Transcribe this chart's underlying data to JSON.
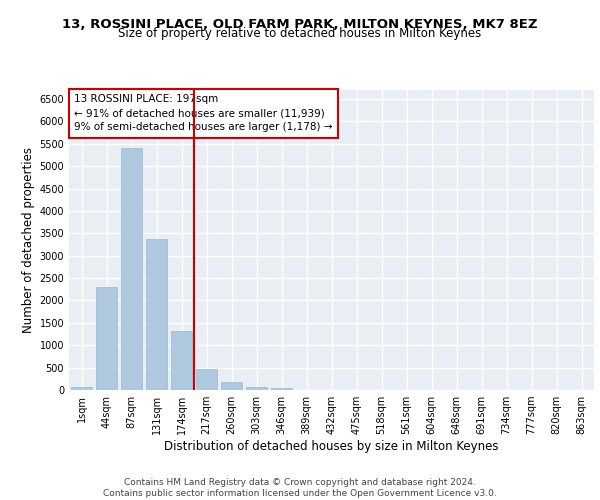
{
  "title_line1": "13, ROSSINI PLACE, OLD FARM PARK, MILTON KEYNES, MK7 8EZ",
  "title_line2": "Size of property relative to detached houses in Milton Keynes",
  "xlabel": "Distribution of detached houses by size in Milton Keynes",
  "ylabel": "Number of detached properties",
  "categories": [
    "1sqm",
    "44sqm",
    "87sqm",
    "131sqm",
    "174sqm",
    "217sqm",
    "260sqm",
    "303sqm",
    "346sqm",
    "389sqm",
    "432sqm",
    "475sqm",
    "518sqm",
    "561sqm",
    "604sqm",
    "648sqm",
    "691sqm",
    "734sqm",
    "777sqm",
    "820sqm",
    "863sqm"
  ],
  "values": [
    75,
    2300,
    5400,
    3380,
    1320,
    480,
    185,
    75,
    55,
    0,
    0,
    0,
    0,
    0,
    0,
    0,
    0,
    0,
    0,
    0,
    0
  ],
  "bar_color": "#aec8e0",
  "bar_edge_color": "#9ab8d0",
  "vline_x": 4.5,
  "vline_color": "#cc0000",
  "annotation_text": "13 ROSSINI PLACE: 197sqm\n← 91% of detached houses are smaller (11,939)\n9% of semi-detached houses are larger (1,178) →",
  "annotation_box_color": "white",
  "annotation_box_edge": "#cc0000",
  "ylim": [
    0,
    6700
  ],
  "yticks": [
    0,
    500,
    1000,
    1500,
    2000,
    2500,
    3000,
    3500,
    4000,
    4500,
    5000,
    5500,
    6000,
    6500
  ],
  "footer_text": "Contains HM Land Registry data © Crown copyright and database right 2024.\nContains public sector information licensed under the Open Government Licence v3.0.",
  "bg_color": "#e8eef4",
  "grid_color": "white",
  "title_fontsize": 9.5,
  "subtitle_fontsize": 8.5,
  "axis_label_fontsize": 8.5,
  "tick_fontsize": 7,
  "annotation_fontsize": 7.5,
  "footer_fontsize": 6.5
}
